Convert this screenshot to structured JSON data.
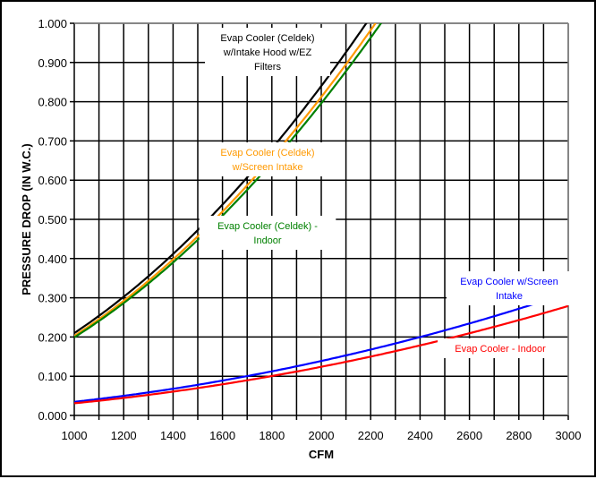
{
  "chart_data": {
    "type": "line",
    "title": "",
    "xlabel": "CFM",
    "ylabel": "PRESSURE DROP (IN W.C.)",
    "xlim": [
      1000,
      3000
    ],
    "ylim": [
      0,
      1.0
    ],
    "grid": true,
    "x_ticks": [
      "1000",
      "1200",
      "1400",
      "1600",
      "1800",
      "2000",
      "2200",
      "2400",
      "2600",
      "2800",
      "3000"
    ],
    "y_ticks": [
      "0.000",
      "0.100",
      "0.200",
      "0.300",
      "0.400",
      "0.500",
      "0.600",
      "0.700",
      "0.800",
      "0.900",
      "1.000"
    ],
    "x": [
      1000,
      1100,
      1200,
      1300,
      1400,
      1500,
      1600,
      1700,
      1800,
      1900,
      2000,
      2100,
      2200,
      2300,
      2400,
      2500,
      2600,
      2700,
      2800,
      2900,
      3000
    ],
    "series": [
      {
        "name": "Evap Cooler (Celdek) w/Intake Hood w/EZ Filters",
        "label_lines": [
          "Evap Cooler (Celdek)",
          "w/Intake Hood w/EZ",
          "Filters"
        ],
        "color": "#000000",
        "coef": 0.21
      },
      {
        "name": "Evap Cooler (Celdek) w/Screen Intake",
        "label_lines": [
          "Evap Cooler (Celdek)",
          "w/Screen Intake"
        ],
        "color": "#FF9900",
        "coef": 0.203
      },
      {
        "name": "Evap Cooler (Celdek) - Indoor",
        "label_lines": [
          "Evap Cooler (Celdek) -",
          "Indoor"
        ],
        "color": "#008000",
        "coef": 0.199
      },
      {
        "name": "Evap Cooler w/Screen Intake",
        "label_lines": [
          "Evap Cooler w/Screen",
          "Intake"
        ],
        "color": "#0000FF",
        "coef": 0.0347
      },
      {
        "name": "Evap Cooler - Indoor",
        "label_lines": [
          "Evap Cooler - Indoor"
        ],
        "color": "#FF0000",
        "coef": 0.031
      }
    ]
  }
}
